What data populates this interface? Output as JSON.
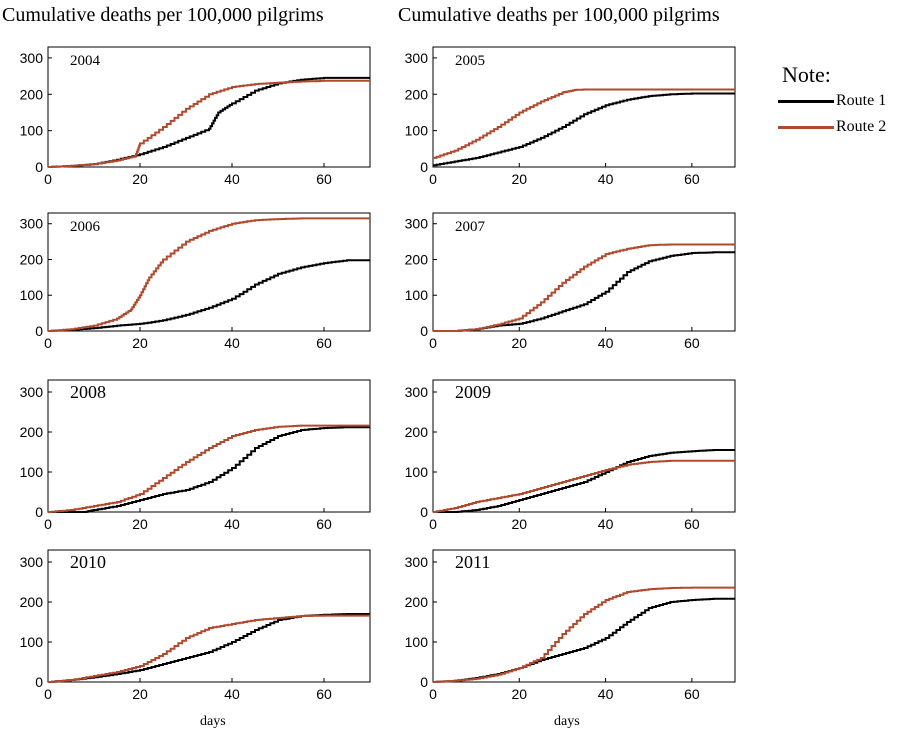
{
  "titles": {
    "left": "Cumulative deaths per 100,000 pilgrims",
    "right": "Cumulative deaths per 100,000 pilgrims"
  },
  "xlabel": "days",
  "legend": {
    "title": "Note:",
    "items": [
      {
        "label": "Route 1",
        "color": "#000000"
      },
      {
        "label": "Route 2",
        "color": "#b04a2e"
      }
    ]
  },
  "chart_data": [
    {
      "type": "line",
      "title": "2004",
      "xlim": [
        0,
        70
      ],
      "ylim": [
        0,
        330
      ],
      "xticks": [
        0,
        20,
        40,
        60
      ],
      "yticks": [
        0,
        100,
        200,
        300
      ],
      "series": [
        {
          "name": "Route 1",
          "x": [
            0,
            5,
            10,
            15,
            20,
            25,
            30,
            35,
            37,
            40,
            45,
            50,
            55,
            60,
            65,
            70
          ],
          "y": [
            0,
            3,
            8,
            20,
            35,
            55,
            80,
            105,
            150,
            175,
            210,
            230,
            240,
            245,
            245,
            245
          ]
        },
        {
          "name": "Route 2",
          "x": [
            0,
            5,
            10,
            15,
            19,
            20,
            25,
            30,
            35,
            40,
            45,
            50,
            55,
            60,
            65,
            70
          ],
          "y": [
            0,
            3,
            8,
            18,
            30,
            65,
            110,
            160,
            200,
            220,
            228,
            232,
            235,
            237,
            237,
            237
          ]
        }
      ]
    },
    {
      "type": "line",
      "title": "2005",
      "xlim": [
        0,
        70
      ],
      "ylim": [
        0,
        330
      ],
      "xticks": [
        0,
        20,
        40,
        60
      ],
      "yticks": [
        0,
        100,
        200,
        300
      ],
      "series": [
        {
          "name": "Route 1",
          "x": [
            0,
            5,
            10,
            15,
            20,
            25,
            30,
            35,
            40,
            45,
            50,
            55,
            60,
            65,
            70
          ],
          "y": [
            5,
            15,
            25,
            40,
            55,
            80,
            110,
            145,
            170,
            185,
            195,
            200,
            202,
            202,
            202
          ]
        },
        {
          "name": "Route 2",
          "x": [
            0,
            5,
            10,
            15,
            20,
            25,
            30,
            33,
            35,
            40,
            50,
            60,
            70
          ],
          "y": [
            25,
            45,
            75,
            110,
            150,
            180,
            205,
            212,
            213,
            213,
            213,
            213,
            213
          ]
        }
      ]
    },
    {
      "type": "line",
      "title": "2006",
      "xlim": [
        0,
        70
      ],
      "ylim": [
        0,
        330
      ],
      "xticks": [
        0,
        20,
        40,
        60
      ],
      "yticks": [
        0,
        100,
        200,
        300
      ],
      "series": [
        {
          "name": "Route 1",
          "x": [
            0,
            5,
            10,
            15,
            20,
            25,
            30,
            35,
            40,
            45,
            50,
            55,
            60,
            65,
            70
          ],
          "y": [
            0,
            3,
            8,
            15,
            20,
            30,
            45,
            65,
            90,
            130,
            160,
            178,
            190,
            198,
            198
          ]
        },
        {
          "name": "Route 2",
          "x": [
            0,
            5,
            10,
            15,
            18,
            20,
            22,
            25,
            30,
            35,
            40,
            45,
            50,
            55,
            60,
            65,
            70
          ],
          "y": [
            0,
            5,
            15,
            35,
            60,
            100,
            150,
            200,
            250,
            280,
            300,
            310,
            313,
            315,
            315,
            315,
            315
          ]
        }
      ]
    },
    {
      "type": "line",
      "title": "2007",
      "xlim": [
        0,
        70
      ],
      "ylim": [
        0,
        330
      ],
      "xticks": [
        0,
        20,
        40,
        60
      ],
      "yticks": [
        0,
        100,
        200,
        300
      ],
      "series": [
        {
          "name": "Route 1",
          "x": [
            0,
            5,
            10,
            15,
            20,
            25,
            30,
            35,
            40,
            45,
            50,
            55,
            60,
            65,
            70
          ],
          "y": [
            0,
            0,
            5,
            15,
            20,
            35,
            55,
            75,
            110,
            165,
            195,
            210,
            218,
            220,
            220
          ]
        },
        {
          "name": "Route 2",
          "x": [
            0,
            5,
            10,
            15,
            20,
            25,
            30,
            35,
            40,
            45,
            50,
            55,
            60,
            65,
            70
          ],
          "y": [
            0,
            0,
            5,
            18,
            35,
            80,
            135,
            180,
            215,
            230,
            240,
            242,
            242,
            242,
            242
          ]
        }
      ]
    },
    {
      "type": "line",
      "title": "2008",
      "xlim": [
        0,
        70
      ],
      "ylim": [
        0,
        330
      ],
      "xticks": [
        0,
        20,
        40,
        60
      ],
      "yticks": [
        0,
        100,
        200,
        300
      ],
      "series": [
        {
          "name": "Route 1",
          "x": [
            0,
            8,
            10,
            15,
            20,
            25,
            30,
            35,
            40,
            45,
            50,
            55,
            60,
            65,
            70
          ],
          "y": [
            0,
            0,
            5,
            15,
            30,
            45,
            55,
            75,
            110,
            160,
            190,
            205,
            210,
            212,
            212
          ]
        },
        {
          "name": "Route 2",
          "x": [
            0,
            5,
            10,
            15,
            20,
            25,
            30,
            35,
            40,
            45,
            50,
            55,
            60,
            65,
            70
          ],
          "y": [
            0,
            5,
            15,
            25,
            45,
            85,
            125,
            160,
            190,
            205,
            213,
            216,
            216,
            216,
            216
          ]
        }
      ]
    },
    {
      "type": "line",
      "title": "2009",
      "xlim": [
        0,
        70
      ],
      "ylim": [
        0,
        330
      ],
      "xticks": [
        0,
        20,
        40,
        60
      ],
      "yticks": [
        0,
        100,
        200,
        300
      ],
      "series": [
        {
          "name": "Route 1",
          "x": [
            0,
            5,
            10,
            15,
            20,
            25,
            30,
            35,
            40,
            45,
            50,
            55,
            60,
            65,
            70
          ],
          "y": [
            0,
            0,
            5,
            15,
            30,
            45,
            60,
            75,
            100,
            125,
            140,
            148,
            152,
            155,
            155
          ]
        },
        {
          "name": "Route 2",
          "x": [
            0,
            5,
            10,
            15,
            20,
            25,
            30,
            35,
            40,
            45,
            50,
            55,
            60,
            65,
            70
          ],
          "y": [
            0,
            10,
            25,
            35,
            45,
            60,
            75,
            90,
            105,
            118,
            125,
            128,
            128,
            128,
            128
          ]
        }
      ]
    },
    {
      "type": "line",
      "title": "2010",
      "xlim": [
        0,
        70
      ],
      "ylim": [
        0,
        330
      ],
      "xticks": [
        0,
        20,
        40,
        60
      ],
      "yticks": [
        0,
        100,
        200,
        300
      ],
      "series": [
        {
          "name": "Route 1",
          "x": [
            0,
            5,
            10,
            15,
            20,
            25,
            30,
            35,
            40,
            45,
            50,
            55,
            60,
            65,
            70
          ],
          "y": [
            0,
            5,
            12,
            20,
            30,
            45,
            60,
            75,
            100,
            130,
            155,
            165,
            168,
            170,
            170
          ]
        },
        {
          "name": "Route 2",
          "x": [
            0,
            5,
            10,
            15,
            20,
            25,
            30,
            35,
            40,
            45,
            50,
            55,
            60,
            65,
            70
          ],
          "y": [
            0,
            5,
            15,
            25,
            40,
            70,
            110,
            135,
            145,
            155,
            160,
            165,
            166,
            166,
            166
          ]
        }
      ]
    },
    {
      "type": "line",
      "title": "2011",
      "xlim": [
        0,
        70
      ],
      "ylim": [
        0,
        330
      ],
      "xticks": [
        0,
        20,
        40,
        60
      ],
      "yticks": [
        0,
        100,
        200,
        300
      ],
      "series": [
        {
          "name": "Route 1",
          "x": [
            0,
            5,
            10,
            15,
            20,
            25,
            30,
            35,
            40,
            45,
            50,
            55,
            60,
            65,
            70
          ],
          "y": [
            0,
            3,
            10,
            20,
            35,
            55,
            70,
            85,
            110,
            150,
            185,
            200,
            205,
            208,
            208
          ]
        },
        {
          "name": "Route 2",
          "x": [
            0,
            5,
            10,
            15,
            20,
            25,
            30,
            35,
            40,
            45,
            50,
            55,
            60,
            65,
            70
          ],
          "y": [
            0,
            3,
            8,
            18,
            35,
            60,
            120,
            170,
            205,
            225,
            232,
            235,
            236,
            236,
            236
          ]
        }
      ]
    }
  ]
}
